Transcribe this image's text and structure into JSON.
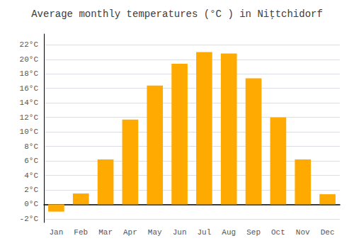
{
  "chart_data": {
    "type": "bar",
    "title": "Average monthly temperatures (°C ) in Niţtchidorf",
    "categories": [
      "Jan",
      "Feb",
      "Mar",
      "Apr",
      "May",
      "Jun",
      "Jul",
      "Aug",
      "Sep",
      "Oct",
      "Nov",
      "Dec"
    ],
    "values": [
      -1.0,
      1.5,
      6.2,
      11.7,
      16.4,
      19.4,
      21.0,
      20.8,
      17.4,
      12.0,
      6.2,
      1.4
    ],
    "color": "#FFAA00",
    "ylim": [
      -2.5,
      23.5
    ],
    "yticks": [
      {
        "value": -2,
        "label": "-2°C"
      },
      {
        "value": 0,
        "label": "0°C"
      },
      {
        "value": 2,
        "label": "2°C"
      },
      {
        "value": 4,
        "label": "4°C"
      },
      {
        "value": 6,
        "label": "6°C"
      },
      {
        "value": 8,
        "label": "8°C"
      },
      {
        "value": 10,
        "label": "10°C"
      },
      {
        "value": 12,
        "label": "12°C"
      },
      {
        "value": 14,
        "label": "14°C"
      },
      {
        "value": 16,
        "label": "16°C"
      },
      {
        "value": 18,
        "label": "18°C"
      },
      {
        "value": 20,
        "label": "20°C"
      },
      {
        "value": 22,
        "label": "22°C"
      }
    ],
    "grid": true
  }
}
